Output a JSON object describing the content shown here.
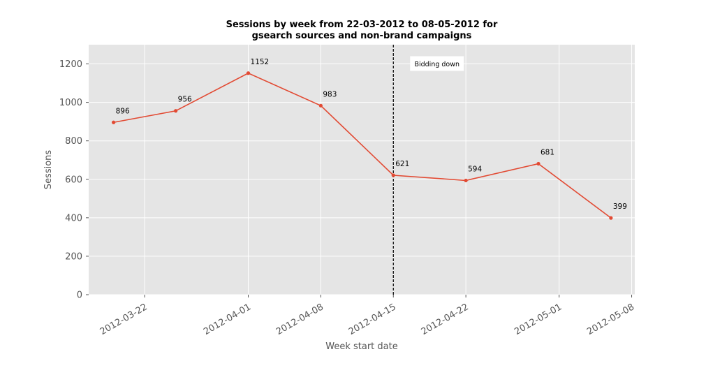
{
  "chart_data": {
    "type": "line",
    "title_line1": "Sessions by week from 22-03-2012 to 08-05-2012 for",
    "title_line2": "gsearch sources and non-brand campaigns",
    "xlabel": "Week start date",
    "ylabel": "Sessions",
    "ylim": [
      0,
      1300
    ],
    "yticks": [
      0,
      200,
      400,
      600,
      800,
      1000,
      1200
    ],
    "xlim": [
      "2012-03-19",
      "2012-05-08"
    ],
    "xticks": [
      "2012-03-22",
      "2012-04-01",
      "2012-04-08",
      "2012-04-15",
      "2012-04-22",
      "2012-05-01",
      "2012-05-08"
    ],
    "grid": true,
    "line_color": "#E24A33",
    "points": [
      {
        "x": "2012-03-19",
        "y": 896
      },
      {
        "x": "2012-03-25",
        "y": 956
      },
      {
        "x": "2012-04-01",
        "y": 1152
      },
      {
        "x": "2012-04-08",
        "y": 983
      },
      {
        "x": "2012-04-15",
        "y": 621
      },
      {
        "x": "2012-04-22",
        "y": 594
      },
      {
        "x": "2012-04-29",
        "y": 681
      },
      {
        "x": "2012-05-06",
        "y": 399
      }
    ],
    "vline": {
      "x": "2012-04-15",
      "label": "Bidding down"
    }
  }
}
